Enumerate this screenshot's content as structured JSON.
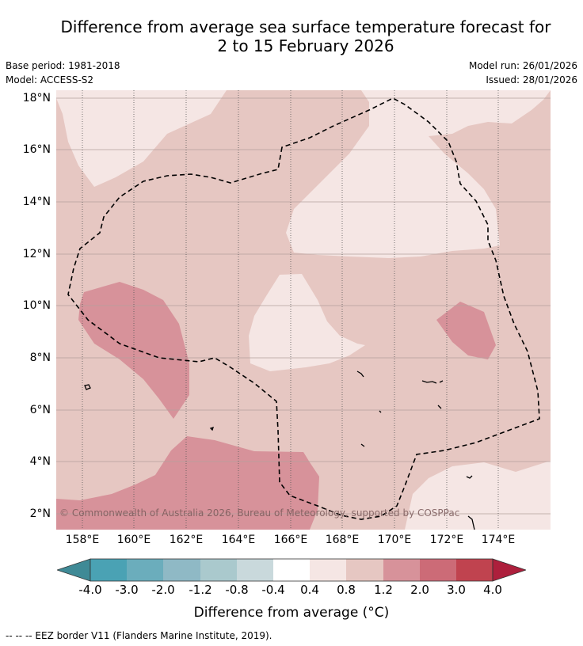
{
  "title_line1": "Difference from average sea surface temperature forecast for",
  "title_line2": "2 to 15 February 2026",
  "base_period": "Base period: 1981-2018",
  "model": "Model: ACCESS-S2",
  "model_run": "Model run: 26/01/2026",
  "issued": "Issued: 28/01/2026",
  "lat_labels": [
    "18°N",
    "16°N",
    "14°N",
    "12°N",
    "10°N",
    "8°N",
    "6°N",
    "4°N",
    "2°N"
  ],
  "lon_labels": [
    "158°E",
    "160°E",
    "162°E",
    "164°E",
    "166°E",
    "168°E",
    "170°E",
    "172°E",
    "174°E"
  ],
  "copyright": "© Commonwealth of Australia 2026, Bureau of Meteorology, supported by COSPPac",
  "colorbar": {
    "ticks": [
      "-4.0",
      "-3.0",
      "-2.0",
      "-1.2",
      "-0.8",
      "-0.4",
      "0.4",
      "0.8",
      "1.2",
      "2.0",
      "3.0",
      "4.0"
    ],
    "colors": [
      "#3f8a96",
      "#4aa2b4",
      "#6badbc",
      "#8fb9c5",
      "#aac9cd",
      "#c9d9dc",
      "#ffffff",
      "#f5e6e4",
      "#e6c7c2",
      "#d7929a",
      "#cc6b77",
      "#c0434f",
      "#ad1f3c"
    ],
    "title": "Difference from average (°C)"
  },
  "footnote": "--  --  -- EEZ border V11 (Flanders Marine Institute, 2019)."
}
